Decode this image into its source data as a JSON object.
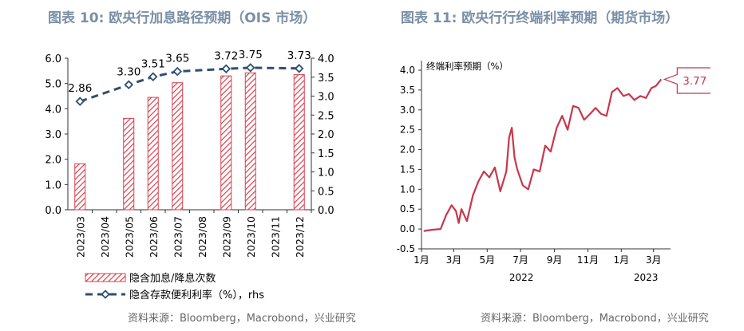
{
  "left_panel": {
    "title": "图表 10: 欧央行加息路径预期（OIS 市场）",
    "source": "资料来源：Bloomberg，Macrobond，兴业研究"
  },
  "right_panel": {
    "title": "图表 11: 欧央行行终端利率预期（期货市场）",
    "source": "资料来源：Bloomberg，Macrobond，兴业研究"
  },
  "colors": {
    "bar": "#d9404f",
    "line": "#2f4f72",
    "series": "#c8374a",
    "title": "#7a8fa6"
  },
  "chart_data": [
    {
      "type": "bar",
      "categories": [
        "2023/03",
        "2023/04",
        "2023/05",
        "2023/06",
        "2023/07",
        "2023/08",
        "2023/09",
        "2023/10",
        "2023/11",
        "2023/12"
      ],
      "series": [
        {
          "name": "隐含加息/降息次数",
          "axis": "left",
          "values": [
            1.82,
            null,
            3.62,
            4.45,
            5.03,
            null,
            5.3,
            5.42,
            null,
            5.35
          ]
        },
        {
          "name": "隐含存款便利利率（%），rhs",
          "axis": "right",
          "style": "dashed-line-diamond",
          "values": [
            2.86,
            null,
            3.3,
            3.51,
            3.65,
            null,
            3.72,
            3.75,
            null,
            3.73
          ],
          "labels": [
            "2.86",
            null,
            "3.30",
            "3.51",
            "3.65",
            null,
            "3.72",
            "3.75",
            null,
            "3.73"
          ]
        }
      ],
      "yticks_left": [
        "0.0",
        "1.0",
        "2.0",
        "3.0",
        "4.0",
        "5.0",
        "6.0"
      ],
      "yticks_right": [
        "0.0",
        "0.5",
        "1.0",
        "1.5",
        "2.0",
        "2.5",
        "3.0",
        "3.5",
        "4.0"
      ],
      "ylim_left": [
        0,
        6
      ],
      "ylim_right": [
        0,
        4
      ],
      "grid": false,
      "legend": "bottom"
    },
    {
      "type": "line",
      "annotation": "终端利率预期（%）",
      "callout": "3.77",
      "yticks": [
        "-0.5",
        "0.0",
        "0.5",
        "1.0",
        "1.5",
        "2.0",
        "2.5",
        "3.0",
        "3.5",
        "4.0"
      ],
      "ylim": [
        -0.5,
        4.0
      ],
      "xticks": [
        "1月",
        "3月",
        "5月",
        "7月",
        "9月",
        "11月",
        "1月",
        "3月"
      ],
      "year_labels": [
        "2022",
        "2023"
      ],
      "xlim": [
        "2022-01-01",
        "2023-04-01"
      ],
      "x": [
        "2022-01-05",
        "2022-01-20",
        "2022-02-05",
        "2022-02-15",
        "2022-02-25",
        "2022-03-05",
        "2022-03-10",
        "2022-03-15",
        "2022-03-25",
        "2022-04-05",
        "2022-04-15",
        "2022-04-25",
        "2022-05-05",
        "2022-05-15",
        "2022-05-25",
        "2022-06-05",
        "2022-06-10",
        "2022-06-15",
        "2022-06-20",
        "2022-06-25",
        "2022-07-05",
        "2022-07-15",
        "2022-07-25",
        "2022-08-05",
        "2022-08-15",
        "2022-08-25",
        "2022-09-05",
        "2022-09-15",
        "2022-09-25",
        "2022-10-05",
        "2022-10-15",
        "2022-10-25",
        "2022-11-05",
        "2022-11-15",
        "2022-11-25",
        "2022-12-05",
        "2022-12-15",
        "2022-12-25",
        "2023-01-05",
        "2023-01-15",
        "2023-01-25",
        "2023-02-05",
        "2023-02-15",
        "2023-02-25",
        "2023-03-05",
        "2023-03-15"
      ],
      "values": [
        -0.05,
        -0.02,
        0.0,
        0.35,
        0.6,
        0.45,
        0.15,
        0.5,
        0.2,
        0.85,
        1.2,
        1.45,
        1.3,
        1.55,
        0.95,
        1.45,
        2.3,
        2.55,
        1.8,
        1.5,
        1.1,
        1.0,
        1.5,
        1.45,
        2.1,
        1.95,
        2.55,
        2.85,
        2.5,
        3.1,
        3.05,
        2.75,
        2.9,
        3.05,
        2.9,
        2.85,
        3.45,
        3.55,
        3.35,
        3.4,
        3.25,
        3.35,
        3.3,
        3.55,
        3.6,
        3.77
      ],
      "grid": false
    }
  ]
}
